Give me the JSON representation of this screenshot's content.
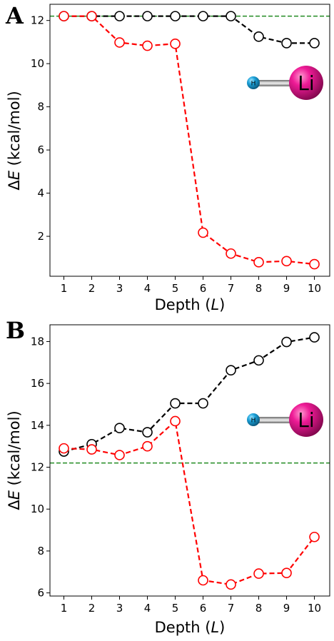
{
  "chart_data": [
    {
      "type": "line",
      "panel_label": "A",
      "x": [
        1,
        2,
        3,
        4,
        5,
        6,
        7,
        8,
        9,
        10
      ],
      "series": [
        {
          "color": "#000000",
          "values": [
            12.2,
            12.2,
            12.2,
            12.2,
            12.2,
            12.2,
            12.2,
            11.25,
            10.95,
            10.95
          ]
        },
        {
          "color": "#ff0000",
          "values": [
            12.2,
            12.2,
            10.98,
            10.83,
            10.92,
            2.17,
            1.2,
            0.8,
            0.85,
            0.71
          ]
        }
      ],
      "reference_line": {
        "y": 12.2,
        "color": "#228b22"
      },
      "xlabel_prefix": "Depth (",
      "xlabel_var": "L",
      "xlabel_suffix": ")",
      "ylabel_delta": "Δ",
      "ylabel_var": "E",
      "ylabel_unit": " (kcal/mol)",
      "xticks": [
        "1",
        "2",
        "3",
        "4",
        "5",
        "6",
        "7",
        "8",
        "9",
        "10"
      ],
      "yticks": [
        2,
        4,
        6,
        8,
        10,
        12
      ],
      "xlim": [
        0.5,
        10.55
      ],
      "ylim": [
        0.15,
        12.75
      ],
      "molecule": {
        "atom_small": "H",
        "atom_large": "Li"
      }
    },
    {
      "type": "line",
      "panel_label": "B",
      "x": [
        1,
        2,
        3,
        4,
        5,
        6,
        7,
        8,
        9,
        10
      ],
      "series": [
        {
          "color": "#000000",
          "values": [
            12.75,
            13.1,
            13.87,
            13.67,
            15.05,
            15.05,
            16.63,
            17.1,
            17.98,
            18.2
          ]
        },
        {
          "color": "#ff0000",
          "values": [
            12.9,
            12.85,
            12.58,
            13.0,
            14.2,
            6.6,
            6.4,
            6.92,
            6.95,
            8.67
          ]
        }
      ],
      "reference_line": {
        "y": 12.2,
        "color": "#228b22"
      },
      "xlabel_prefix": "Depth (",
      "xlabel_var": "L",
      "xlabel_suffix": ")",
      "ylabel_delta": "Δ",
      "ylabel_var": "E",
      "ylabel_unit": " (kcal/mol)",
      "xticks": [
        "1",
        "2",
        "3",
        "4",
        "5",
        "6",
        "7",
        "8",
        "9",
        "10"
      ],
      "yticks": [
        6,
        8,
        10,
        12,
        14,
        16,
        18
      ],
      "xlim": [
        0.5,
        10.55
      ],
      "ylim": [
        5.85,
        18.8
      ],
      "molecule": {
        "atom_small": "H",
        "atom_large": "Li"
      }
    }
  ]
}
